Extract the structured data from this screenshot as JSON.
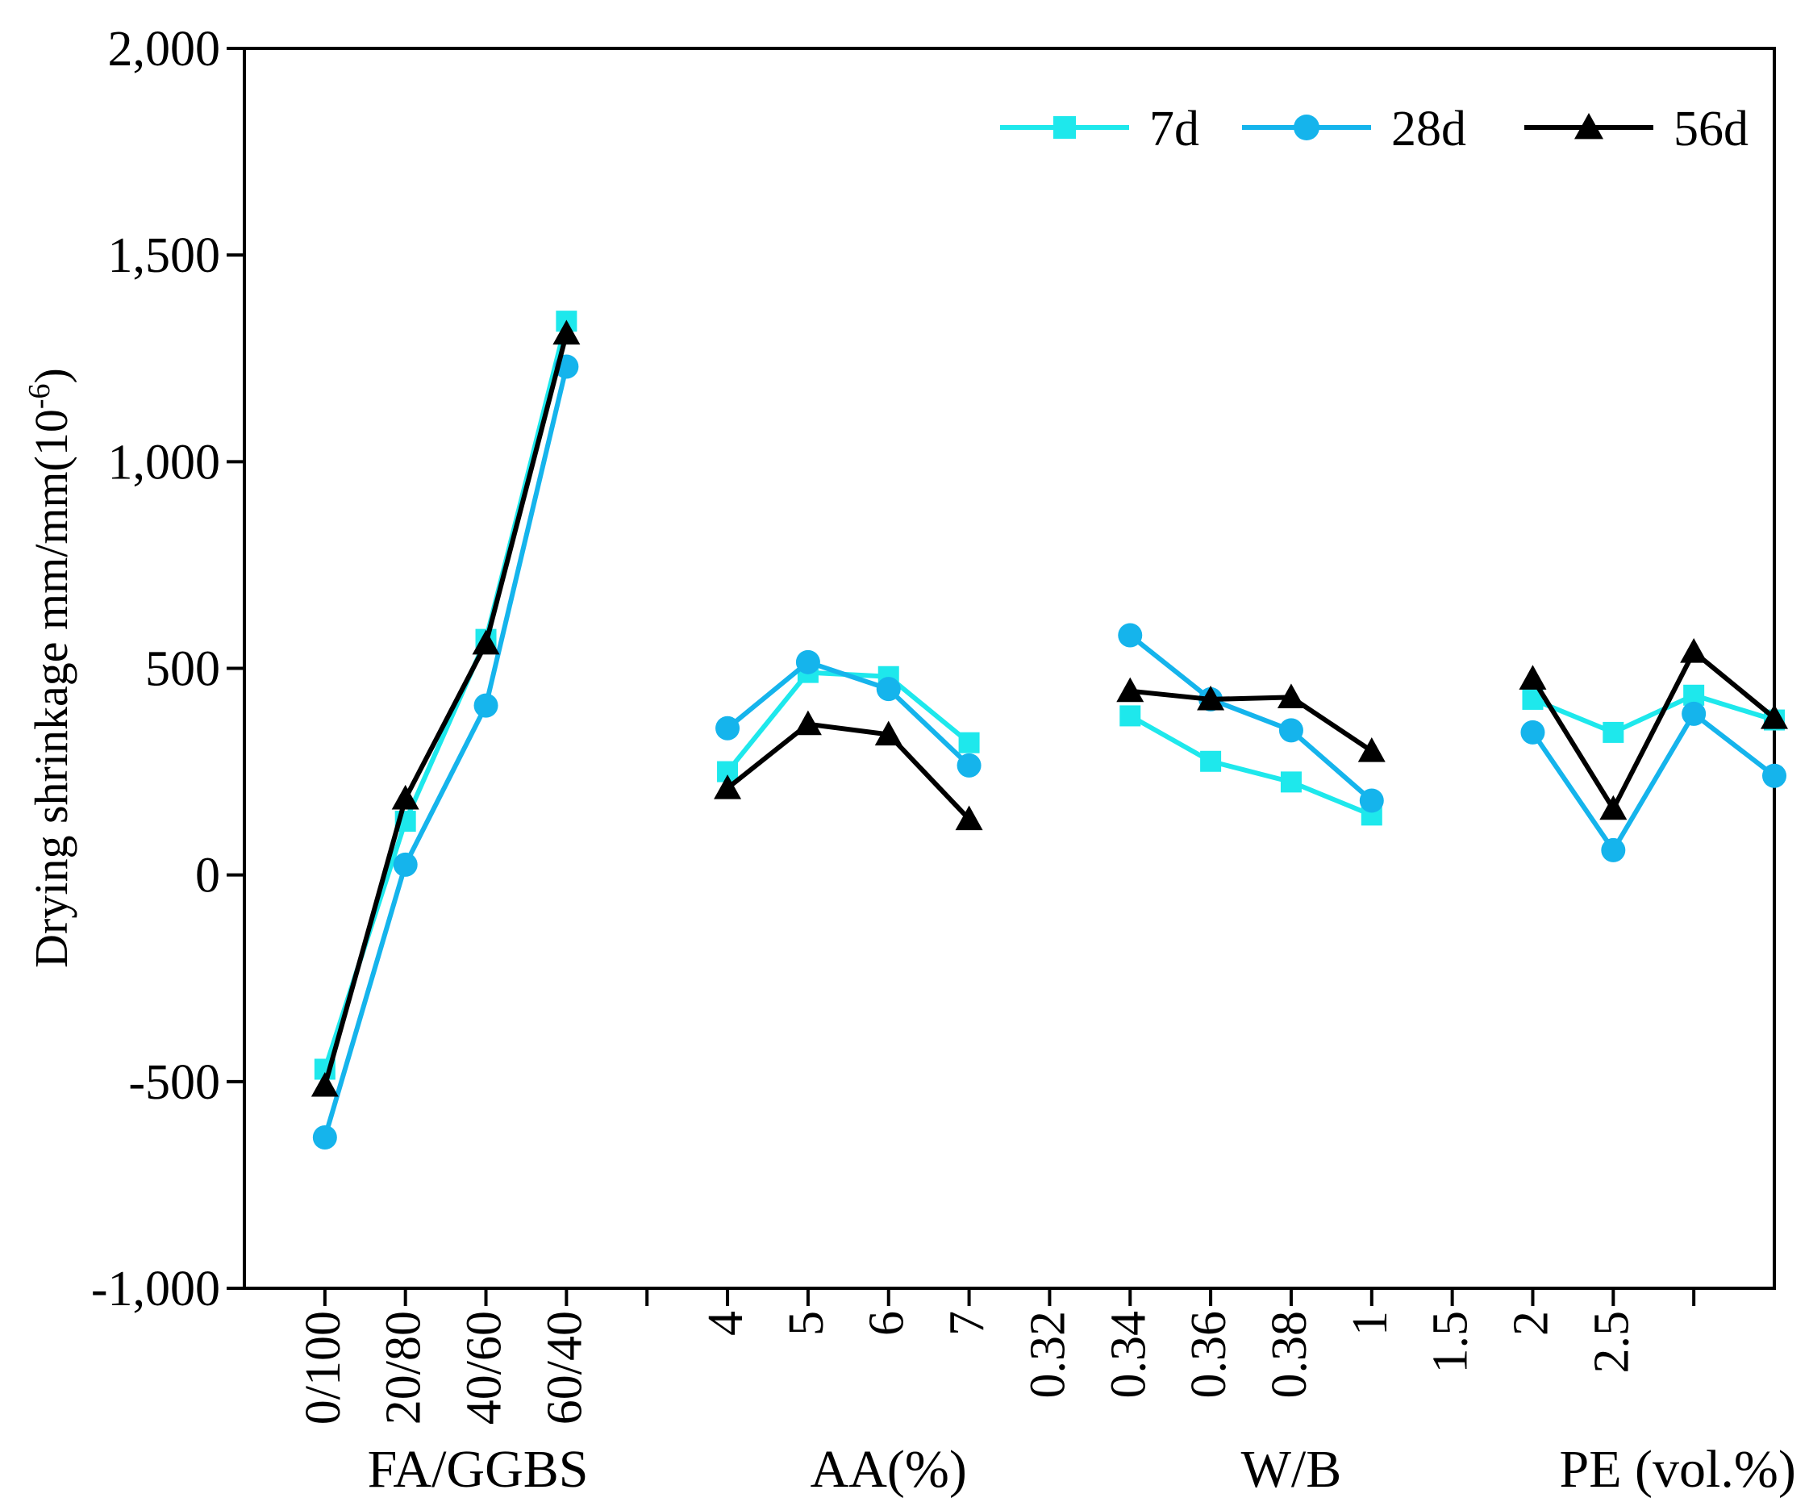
{
  "chart_data": {
    "type": "line",
    "title": "",
    "ylabel": "Drying shrinkage mm/mm(10",
    "ylabel_superscript": "-6",
    "ylabel_close": ")",
    "ylim": [
      -1000,
      2000
    ],
    "yticks": [
      -1000,
      -500,
      0,
      500,
      1000,
      1500,
      2000
    ],
    "ytick_labels": [
      "-1,000",
      "-500",
      "0",
      "500",
      "1,000",
      "1,500",
      "2,000"
    ],
    "x_slots": 18,
    "x_tick_labels": [
      "0/100",
      "20/80",
      "40/60",
      "60/40",
      "",
      "4",
      "5",
      "6",
      "7",
      "0.32",
      "0.34",
      "0.36",
      "0.38",
      "1",
      "1.5",
      "2",
      "2.5"
    ],
    "group_labels": [
      {
        "label": "FA/GGBS",
        "center_slot": 2.9
      },
      {
        "label": "AA(%)",
        "center_slot": 8
      },
      {
        "label": "W/B",
        "center_slot": 13
      },
      {
        "label": "PE (vol.%)",
        "center_slot": 17.8
      }
    ],
    "legend_position": "top-right",
    "segments": [
      {
        "group": "FA/GGBS",
        "slots": [
          1,
          2,
          3,
          4
        ]
      },
      {
        "group": "AA(%)",
        "slots": [
          6,
          7,
          8,
          9
        ]
      },
      {
        "group": "W/B",
        "slots": [
          11,
          12,
          13,
          14
        ]
      },
      {
        "group": "PE (vol.%)",
        "slots": [
          16,
          17,
          18,
          19
        ]
      }
    ],
    "series": [
      {
        "name": "7d",
        "color": "#1ee8ec",
        "marker": "square",
        "values": [
          [
            -470,
            130,
            570,
            1340
          ],
          [
            250,
            490,
            480,
            320
          ],
          [
            385,
            275,
            225,
            145
          ],
          [
            425,
            345,
            435,
            375
          ]
        ]
      },
      {
        "name": "28d",
        "color": "#15b4ec",
        "marker": "circle",
        "values": [
          [
            -635,
            25,
            410,
            1230
          ],
          [
            355,
            515,
            450,
            265
          ],
          [
            580,
            425,
            350,
            180
          ],
          [
            345,
            60,
            390,
            240
          ]
        ]
      },
      {
        "name": "56d",
        "color": "#000000",
        "marker": "triangle",
        "values": [
          [
            -510,
            185,
            560,
            1310
          ],
          [
            210,
            365,
            340,
            135
          ],
          [
            445,
            425,
            430,
            300
          ],
          [
            475,
            160,
            540,
            380
          ]
        ]
      }
    ]
  }
}
